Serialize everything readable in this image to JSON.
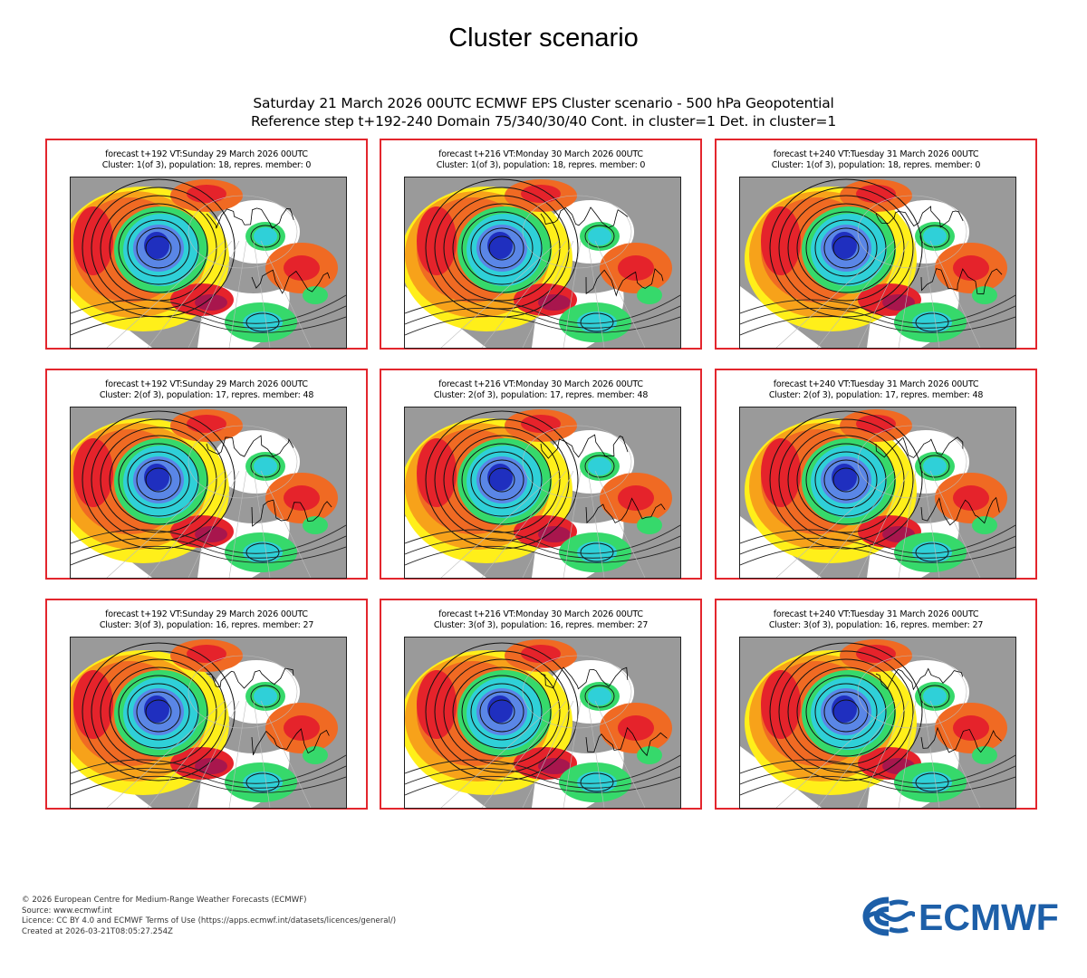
{
  "page": {
    "title": "Cluster scenario"
  },
  "header": {
    "line1": "Saturday 21 March 2026 00UTC ECMWF EPS Cluster scenario - 500 hPa Geopotential",
    "line2": "Reference step t+192-240 Domain 75/340/30/40 Cont. in cluster=1 Det. in cluster=1"
  },
  "panels": [
    {
      "line1": "forecast t+192 VT:Sunday 29 March 2026 00UTC",
      "line2": "Cluster: 1(of 3), population: 18, repres. member: 0"
    },
    {
      "line1": "forecast t+216 VT:Monday 30 March 2026 00UTC",
      "line2": "Cluster: 1(of 3), population: 18, repres. member: 0"
    },
    {
      "line1": "forecast t+240 VT:Tuesday 31 March 2026 00UTC",
      "line2": "Cluster: 1(of 3), population: 18, repres. member: 0"
    },
    {
      "line1": "forecast t+192 VT:Sunday 29 March 2026 00UTC",
      "line2": "Cluster: 2(of 3), population: 17, repres. member: 48"
    },
    {
      "line1": "forecast t+216 VT:Monday 30 March 2026 00UTC",
      "line2": "Cluster: 2(of 3), population: 17, repres. member: 48"
    },
    {
      "line1": "forecast t+240 VT:Tuesday 31 March 2026 00UTC",
      "line2": "Cluster: 2(of 3), population: 17, repres. member: 48"
    },
    {
      "line1": "forecast t+192 VT:Sunday 29 March 2026 00UTC",
      "line2": "Cluster: 3(of 3), population: 16, repres. member: 27"
    },
    {
      "line1": "forecast t+216 VT:Monday 30 March 2026 00UTC",
      "line2": "Cluster: 3(of 3), population: 16, repres. member: 27"
    },
    {
      "line1": "forecast t+240 VT:Tuesday 31 March 2026 00UTC",
      "line2": "Cluster: 3(of 3), population: 16, repres. member: 27"
    }
  ],
  "footer": {
    "line1": "© 2026 European Centre for Medium-Range Weather Forecasts (ECMWF)",
    "line2": "Source: www.ecmwf.int",
    "line3": "Licence: CC BY 4.0 and ECMWF Terms of Use (https://apps.ecmwf.int/datasets/licences/general/)",
    "line4": "Created at 2026-03-21T08:05:27.254Z"
  },
  "logo": {
    "text": "ECMWF",
    "color": "#1d5fa8"
  },
  "colors": {
    "frame": "#e3262d",
    "land": "#9a9a9a",
    "anom_neg_strong": "#1f2fbf",
    "anom_neg_mid": "#5a86e6",
    "anom_neg": "#2fd0d8",
    "anom_neg_weak": "#36d96b",
    "anom_pos_weak": "#ffef1a",
    "anom_pos": "#f7a21a",
    "anom_pos_mid": "#f06a23",
    "anom_pos_strong": "#e5232b",
    "anom_pos_extreme": "#a8164d"
  }
}
